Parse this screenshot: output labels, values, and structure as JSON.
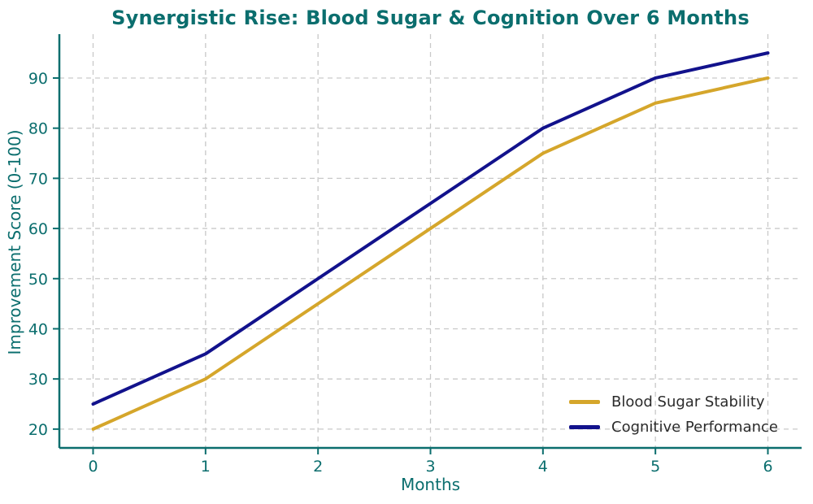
{
  "figure": {
    "background": "#ffffff",
    "accent_teal": "#0b6e6e",
    "grid_color": "#c9c9c9",
    "legend_text_color": "#2b2b2b"
  },
  "chart_data": {
    "type": "line",
    "title": "Synergistic Rise: Blood Sugar & Cognition Over 6 Months",
    "xlabel": "Months",
    "ylabel": "Improvement Score (0-100)",
    "x": [
      0,
      1,
      2,
      3,
      4,
      5,
      6
    ],
    "series": [
      {
        "name": "Blood Sugar Stability",
        "color": "#d5a62b",
        "values": [
          20,
          30,
          45,
          60,
          75,
          85,
          90
        ]
      },
      {
        "name": "Cognitive Performance",
        "color": "#12128c",
        "values": [
          25,
          35,
          50,
          65,
          80,
          90,
          95
        ]
      }
    ],
    "x_ticks": [
      0,
      1,
      2,
      3,
      4,
      5,
      6
    ],
    "y_ticks": [
      20,
      30,
      40,
      50,
      60,
      70,
      80,
      90
    ],
    "xlim": [
      -0.3,
      6.3
    ],
    "ylim": [
      16.25,
      98.75
    ],
    "grid": true,
    "grid_style": "dashed",
    "legend_position": "lower right",
    "line_width": 4
  }
}
